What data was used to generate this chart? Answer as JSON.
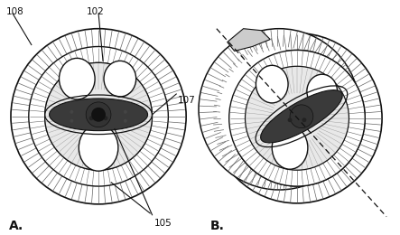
{
  "bg_color": "#ffffff",
  "fig_width": 4.43,
  "fig_height": 2.6,
  "label_A": "A.",
  "label_B": "B.",
  "line_color": "#111111",
  "dark_fill": "#2a2a2a",
  "gray_fill": "#aaaaaa",
  "light_gray": "#cccccc",
  "white_fill": "#ffffff",
  "hatch_bg": "#e8e8e8"
}
